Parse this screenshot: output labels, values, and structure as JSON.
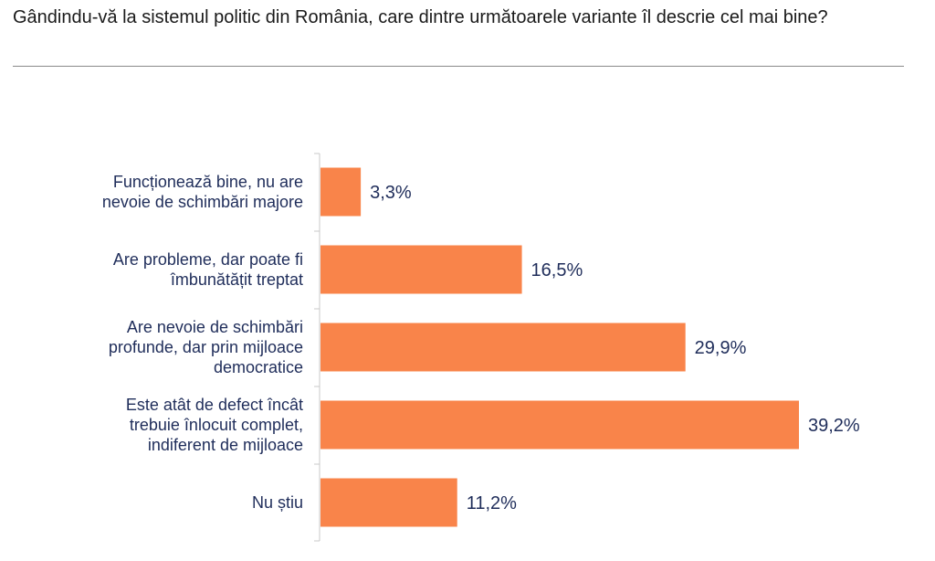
{
  "question": "Gândindu-vă la sistemul politic din România, care dintre următoarele variante îl descrie cel mai bine?",
  "colors": {
    "bar": "#f9844a",
    "label_text": "#1f2d5a",
    "axis": "#c8c8c8"
  },
  "chart_data": {
    "type": "bar",
    "orientation": "horizontal",
    "title": "",
    "xlabel": "",
    "ylabel": "",
    "grid": false,
    "legend": "none",
    "categories": [
      [
        "Funcționează bine, nu are",
        "nevoie de schimbări majore"
      ],
      [
        "Are probleme, dar poate fi",
        "îmbunătățit treptat"
      ],
      [
        "Are nevoie de schimbări",
        "profunde, dar prin mijloace",
        "democratice"
      ],
      [
        "Este atât de defect încât",
        "trebuie înlocuit complet,",
        "indiferent de mijloace"
      ],
      [
        "Nu știu"
      ]
    ],
    "values": [
      3.3,
      16.5,
      29.9,
      39.2,
      11.2
    ],
    "value_labels": [
      "3,3%",
      "16,5%",
      "29,9%",
      "39,2%",
      "11,2%"
    ],
    "xlim": [
      0,
      40
    ]
  }
}
